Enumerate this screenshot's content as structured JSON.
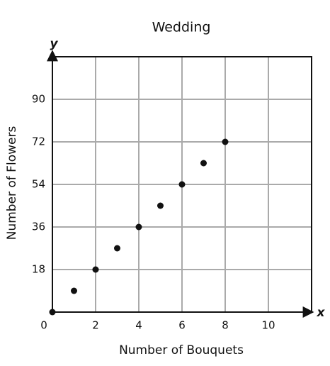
{
  "chart_data": {
    "type": "scatter",
    "title": "Wedding",
    "x_label": "Number of Bouquets",
    "y_label": "Number of Flowers",
    "x_axis_symbol": "x",
    "y_axis_symbol": "y",
    "x": [
      0,
      1,
      2,
      3,
      4,
      5,
      6,
      7,
      8
    ],
    "series": [
      {
        "color": "#111111",
        "values": [
          0,
          9,
          18,
          27,
          36,
          45,
          54,
          63,
          72
        ]
      }
    ],
    "xlim": [
      0,
      12
    ],
    "ylim": [
      0,
      108
    ],
    "xticks": [
      0,
      2,
      4,
      6,
      8,
      10
    ],
    "yticks": [
      18,
      36,
      54,
      72,
      90
    ],
    "grid": true
  }
}
